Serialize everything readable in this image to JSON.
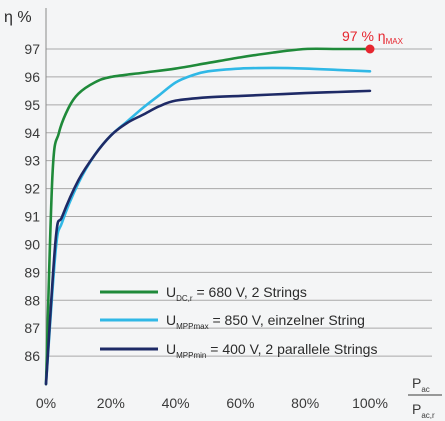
{
  "chart_data": {
    "type": "line",
    "ylabel": "η %",
    "x_axis_label": {
      "main": "P",
      "numerator_sub": "ac",
      "denominator_sub": "ac,r"
    },
    "xlim": [
      0,
      100
    ],
    "ylim": [
      85,
      97
    ],
    "xticks": [
      0,
      20,
      40,
      60,
      80,
      100
    ],
    "xtick_labels": [
      "0%",
      "20%",
      "40%",
      "60%",
      "80%",
      "100%"
    ],
    "yticks": [
      86,
      87,
      88,
      89,
      90,
      91,
      92,
      93,
      94,
      95,
      96,
      97
    ],
    "ytick_labels": [
      "86",
      "87",
      "88",
      "89",
      "90",
      "91",
      "92",
      "93",
      "94",
      "95",
      "96",
      "97"
    ],
    "grid": "horizontal",
    "annotation": {
      "text": "97 % η",
      "sub": "MAX",
      "x": 100,
      "y": 97,
      "color": "#e6262f"
    },
    "series": [
      {
        "name": "U_DC,r = 680 V, 2 Strings",
        "legend": {
          "U": "U",
          "sub": "DC,r",
          "rest": " = 680 V, 2 Strings"
        },
        "color": "#1f8a3a",
        "x": [
          0,
          2,
          4,
          7,
          10,
          15,
          20,
          30,
          40,
          50,
          60,
          70,
          80,
          90,
          100
        ],
        "y": [
          85,
          92.5,
          94.0,
          94.9,
          95.4,
          95.8,
          96.0,
          96.15,
          96.3,
          96.5,
          96.7,
          96.87,
          97.0,
          97.0,
          97.0
        ]
      },
      {
        "name": "U_MPPmax = 850 V, einzelner String",
        "legend": {
          "U": "U",
          "sub": "MPPmax",
          "rest": " = 850 V, einzelner String"
        },
        "color": "#30b8e6",
        "x": [
          0,
          3,
          5,
          10,
          15,
          20,
          25,
          30,
          35,
          40,
          45,
          50,
          60,
          70,
          80,
          90,
          100
        ],
        "y": [
          85,
          89.8,
          90.8,
          92.2,
          93.2,
          93.9,
          94.4,
          94.9,
          95.35,
          95.8,
          96.05,
          96.2,
          96.3,
          96.32,
          96.3,
          96.25,
          96.2
        ]
      },
      {
        "name": "U_MPPmin = 400 V, 2 parallele Strings",
        "legend": {
          "U": "U",
          "sub": "MPPmin",
          "rest": " = 400 V, 2 parallele Strings"
        },
        "color": "#1e2a66",
        "x": [
          0,
          3,
          5,
          10,
          15,
          20,
          25,
          30,
          35,
          40,
          50,
          60,
          70,
          80,
          90,
          100
        ],
        "y": [
          85,
          90.2,
          91.0,
          92.3,
          93.2,
          93.9,
          94.35,
          94.65,
          94.95,
          95.15,
          95.27,
          95.32,
          95.37,
          95.42,
          95.46,
          95.5
        ]
      }
    ]
  }
}
